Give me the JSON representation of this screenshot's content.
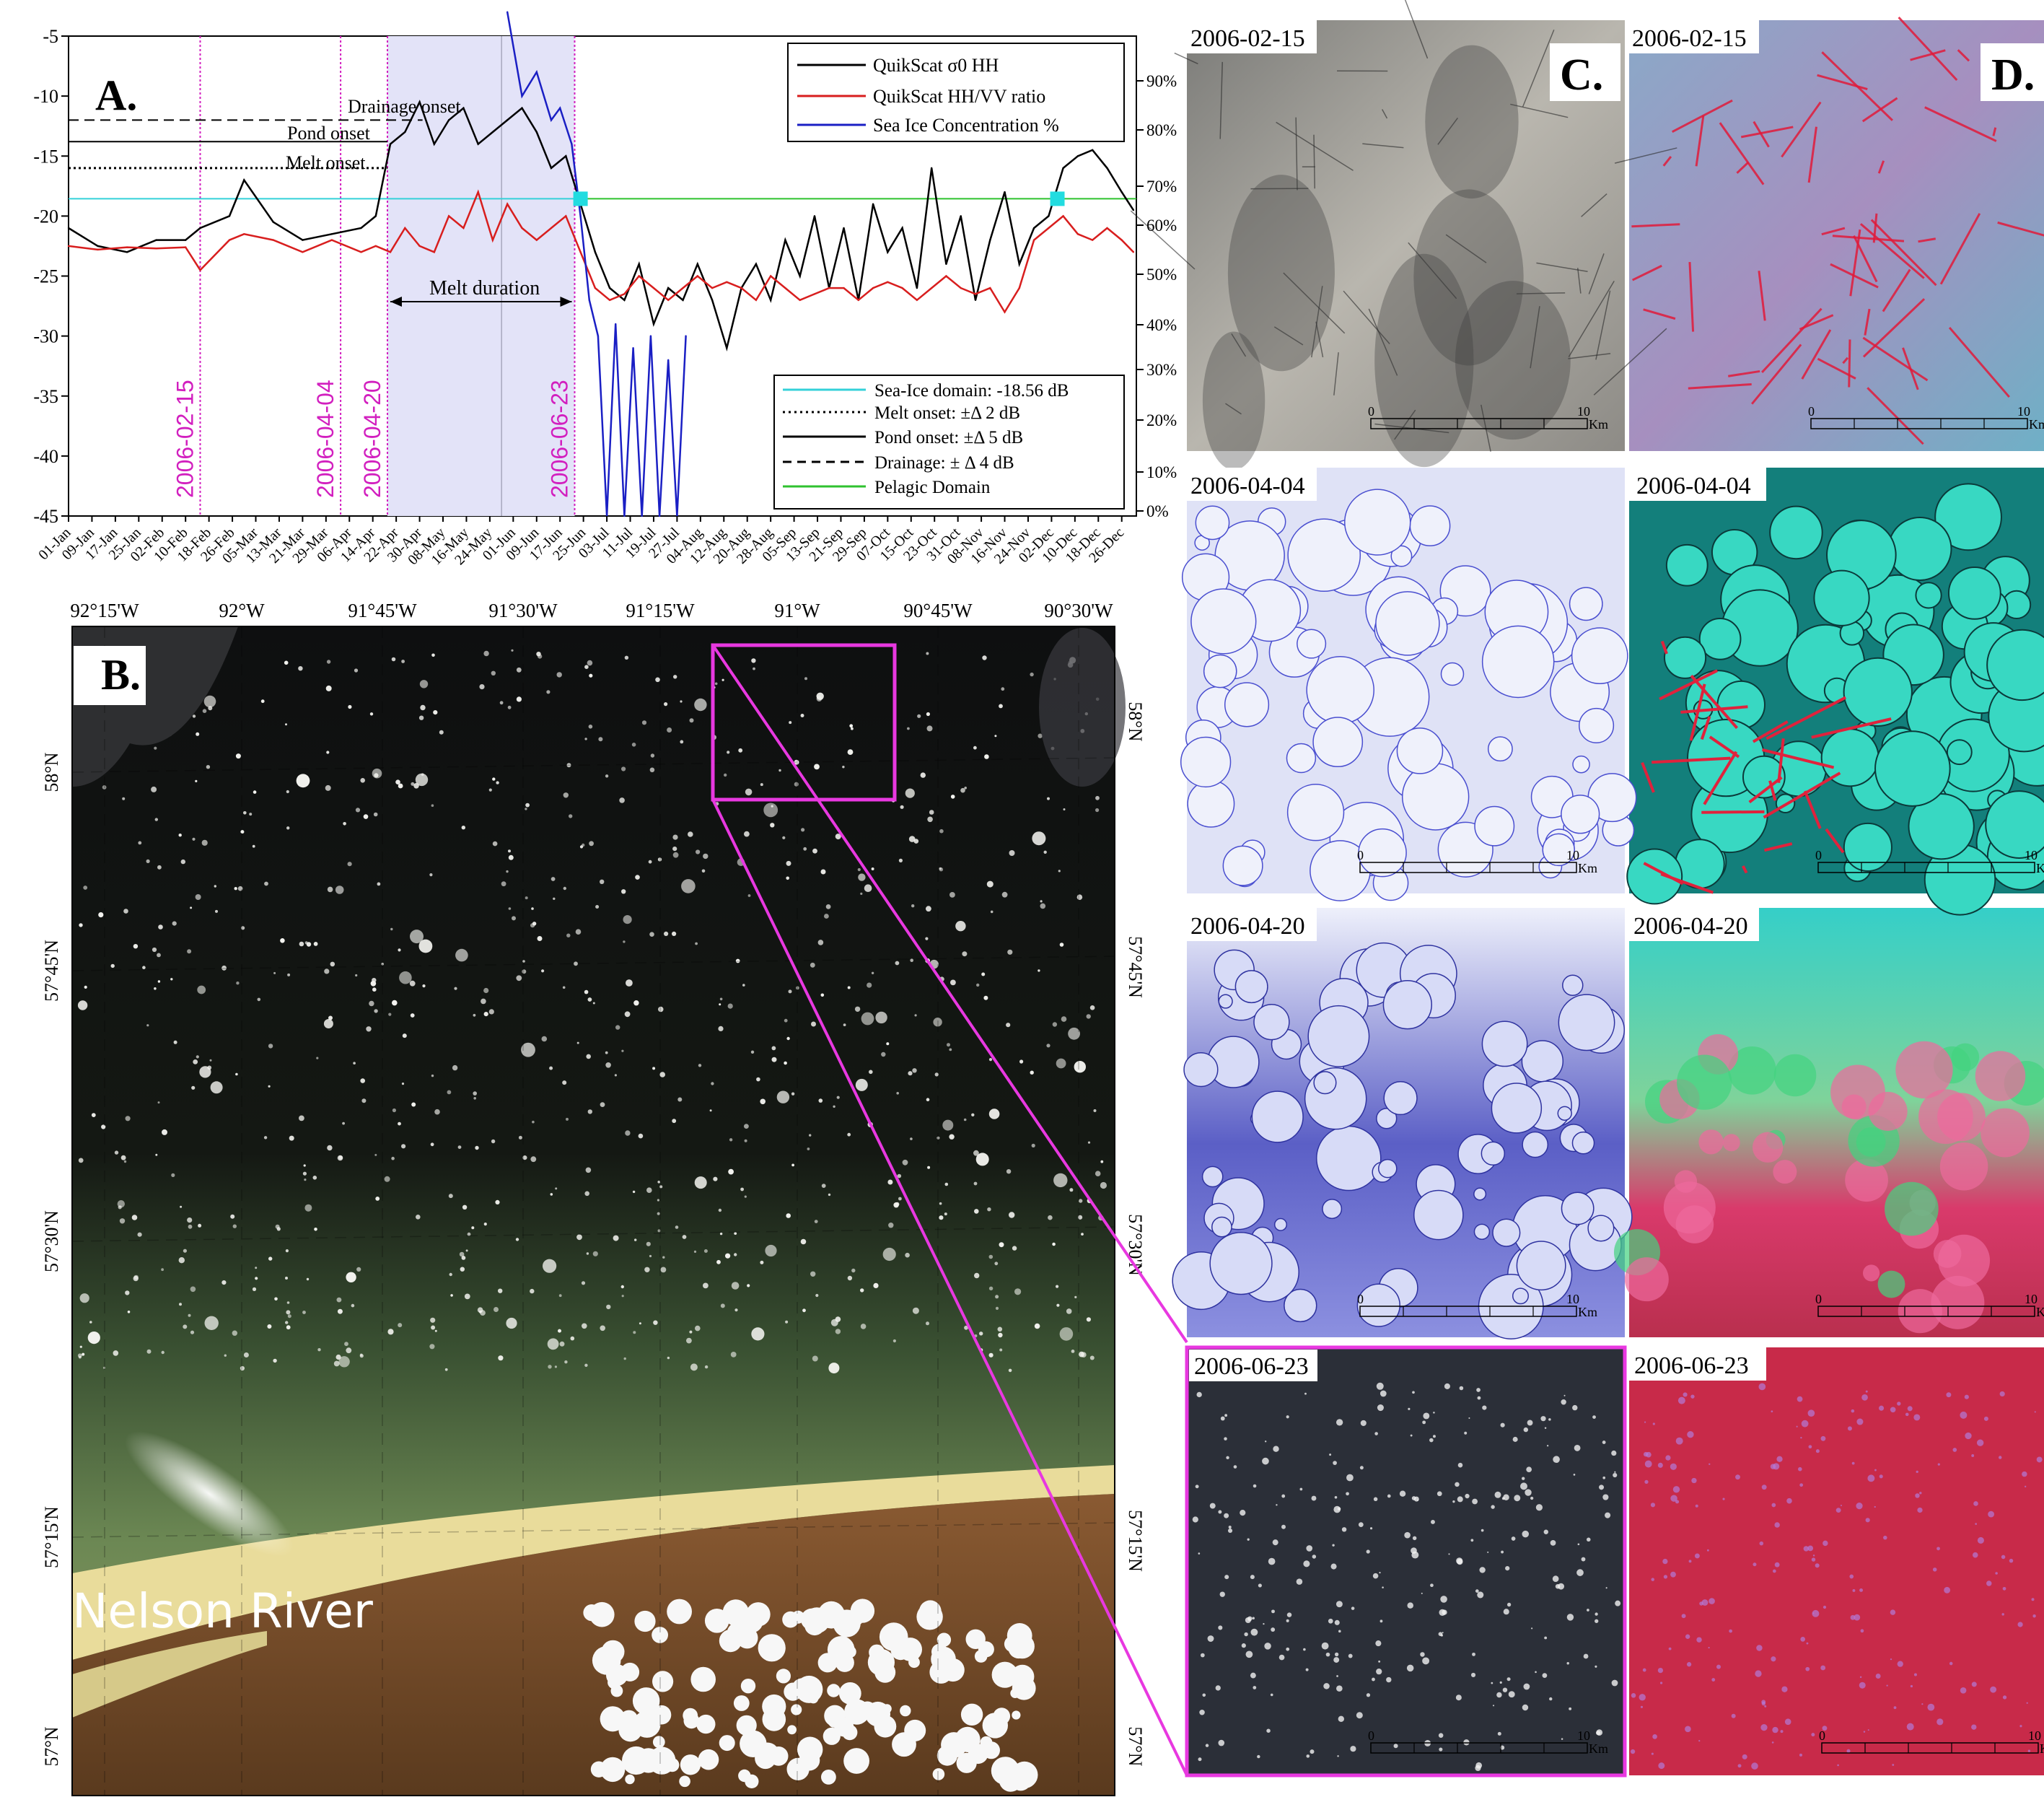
{
  "chart_data": [
    {
      "type": "line",
      "panel_label": "A.",
      "ylim": [
        -45,
        -5
      ],
      "yticks": [
        -5,
        -10,
        -15,
        -20,
        -25,
        -30,
        -35,
        -40,
        -45
      ],
      "y2_ticks": [
        "0%",
        "10%",
        "20%",
        "30%",
        "40%",
        "50%",
        "60%",
        "70%",
        "80%",
        "90%"
      ],
      "xticks": [
        "01-Jan",
        "09-Jan",
        "17-Jan",
        "25-Jan",
        "02-Feb",
        "10-Feb",
        "18-Feb",
        "26-Feb",
        "05-Mar",
        "13-Mar",
        "21-Mar",
        "29-Mar",
        "06-Apr",
        "14-Apr",
        "22-Apr",
        "30-Apr",
        "08-May",
        "16-May",
        "24-May",
        "01-Jun",
        "09-Jun",
        "17-Jun",
        "25-Jun",
        "03-Jul",
        "11-Jul",
        "19-Jul",
        "27-Jul",
        "04-Aug",
        "12-Aug",
        "20-Aug",
        "28-Aug",
        "05-Sep",
        "13-Sep",
        "21-Sep",
        "29-Sep",
        "07-Oct",
        "15-Oct",
        "23-Oct",
        "31-Oct",
        "08-Nov",
        "16-Nov",
        "24-Nov",
        "02-Dec",
        "10-Dec",
        "18-Dec",
        "26-Dec"
      ],
      "legend_top": [
        {
          "name": "QuikScat σ0 HH",
          "color": "#000000",
          "style": "solid"
        },
        {
          "name": "QuikScat HH/VV ratio",
          "color": "#d81e1e",
          "style": "solid"
        },
        {
          "name": "Sea Ice Concentration %",
          "color": "#1a1fc4",
          "style": "solid"
        }
      ],
      "legend_bottom": [
        {
          "name": "Sea-Ice domain: -18.56 dB",
          "color": "#34d1d9",
          "style": "solid"
        },
        {
          "name": "Melt onset: ±Δ 2 dB",
          "color": "#000000",
          "style": "dotted"
        },
        {
          "name": "Pond onset: ±Δ 5 dB",
          "color": "#000000",
          "style": "solid"
        },
        {
          "name": "Drainage: ± Δ 4 dB",
          "color": "#000000",
          "style": "dashed"
        },
        {
          "name": "Pelagic Domain",
          "color": "#2fc22f",
          "style": "solid"
        }
      ],
      "annotations": {
        "drainage_onset": "Drainage onset",
        "pond_onset": "Pond onset",
        "melt_onset": "Melt onset",
        "melt_duration": "Melt duration",
        "date_lines": [
          "2006-02-15",
          "2006-04-04",
          "2006-04-20",
          "2006-06-23"
        ]
      },
      "date_line_days": [
        45,
        93,
        109,
        173
      ],
      "melt_span_days": [
        109,
        173
      ],
      "sea_ice_domain_db": -18.56,
      "threshold_levels": {
        "drainage": -12,
        "pond": -13.8,
        "melt": -16
      },
      "markers": [
        {
          "day": 175,
          "y": -18.56
        },
        {
          "day": 338,
          "y": -18.56
        }
      ],
      "series": [
        {
          "name": "QuikScat σ0 HH",
          "x": [
            0,
            10,
            20,
            30,
            40,
            45,
            55,
            60,
            70,
            80,
            90,
            100,
            105,
            110,
            115,
            120,
            125,
            130,
            135,
            140,
            145,
            150,
            155,
            160,
            165,
            170,
            175,
            180,
            185,
            190,
            195,
            200,
            205,
            210,
            215,
            220,
            225,
            230,
            235,
            240,
            245,
            250,
            255,
            260,
            265,
            270,
            275,
            280,
            285,
            290,
            295,
            300,
            305,
            310,
            315,
            320,
            325,
            330,
            335,
            340,
            345,
            350,
            355,
            360,
            364
          ],
          "values": [
            -21,
            -22.5,
            -23,
            -22,
            -22,
            -21,
            -20,
            -17,
            -20.5,
            -22,
            -21.5,
            -21,
            -20,
            -14,
            -13,
            -10.5,
            -14,
            -12,
            -11,
            -14,
            -13,
            -12,
            -11,
            -13,
            -16,
            -15,
            -19,
            -23,
            -26,
            -27,
            -24,
            -29,
            -26,
            -27,
            -24,
            -27,
            -31,
            -26,
            -24,
            -27,
            -22,
            -25,
            -20,
            -26,
            -21,
            -27,
            -19,
            -23,
            -21,
            -26,
            -16,
            -24,
            -20,
            -27,
            -22,
            -18,
            -24,
            -21,
            -20,
            -16,
            -15,
            -14.5,
            -16,
            -18,
            -19.5
          ]
        },
        {
          "name": "QuikScat HH/VV ratio",
          "x": [
            0,
            10,
            20,
            30,
            40,
            45,
            55,
            60,
            70,
            80,
            90,
            100,
            105,
            110,
            115,
            120,
            125,
            130,
            135,
            140,
            145,
            150,
            155,
            160,
            165,
            170,
            175,
            180,
            185,
            190,
            195,
            200,
            205,
            210,
            215,
            220,
            225,
            230,
            235,
            240,
            245,
            250,
            255,
            260,
            265,
            270,
            275,
            280,
            285,
            290,
            295,
            300,
            305,
            310,
            315,
            320,
            325,
            330,
            335,
            340,
            345,
            350,
            355,
            360,
            364
          ],
          "values": [
            -22.5,
            -22.8,
            -22.6,
            -22.7,
            -22.6,
            -24.5,
            -22,
            -21.5,
            -22,
            -23,
            -22,
            -23,
            -22.5,
            -23,
            -21,
            -22.5,
            -23,
            -20,
            -21,
            -18,
            -22,
            -19,
            -21,
            -22,
            -21,
            -20,
            -23,
            -26,
            -27,
            -26.5,
            -25,
            -26,
            -27,
            -26,
            -25,
            -26,
            -25.5,
            -26,
            -27,
            -25,
            -26,
            -27,
            -26.5,
            -26,
            -26,
            -27,
            -26,
            -25.5,
            -26,
            -27,
            -26,
            -25,
            -26,
            -26.5,
            -26,
            -28,
            -26,
            -22,
            -21,
            -20,
            -21.5,
            -22,
            -21,
            -22,
            -23
          ]
        },
        {
          "name": "Sea Ice Concentration %",
          "x": [
            150,
            155,
            160,
            165,
            168,
            172,
            175,
            178,
            181,
            184,
            187,
            190,
            193,
            196,
            199,
            202,
            205,
            208,
            211
          ],
          "values": [
            -3,
            -10,
            -8,
            -12,
            -11,
            -14,
            -20,
            -27,
            -30,
            -45,
            -29,
            -45,
            -31,
            -45,
            -30,
            -45,
            -32,
            -45,
            -30
          ]
        }
      ]
    }
  ],
  "panels": {
    "map_label": "B.",
    "map_lon_ticks": [
      "92°15'W",
      "92°W",
      "91°45'W",
      "91°30'W",
      "91°15'W",
      "91°W",
      "90°45'W",
      "90°30'W"
    ],
    "map_lat_ticks_left": [
      "58°N",
      "57°45'N",
      "57°30'N",
      "57°15'N",
      "57°N"
    ],
    "map_lat_ticks_right": [
      "58°N",
      "57°45'N",
      "57°30'N",
      "57°15'N",
      "57°N"
    ],
    "map_river_label": "Nelson River",
    "c_label": "C.",
    "d_label": "D.",
    "dates": [
      "2006-02-15",
      "2006-04-04",
      "2006-04-20",
      "2006-06-23"
    ],
    "scale_zero": "0",
    "scale_ten": "10",
    "scale_unit": "Km"
  },
  "colors": {
    "sigma0": "#000000",
    "ratio": "#d81e1e",
    "concentration": "#1a1fc4",
    "sea_ice_domain": "#34d1d9",
    "pelagic": "#2fc22f",
    "date_line": "#d21fbf",
    "melt_span": "#e3e3f8",
    "marker": "#22dce0",
    "zoom_box": "#e838e0"
  }
}
